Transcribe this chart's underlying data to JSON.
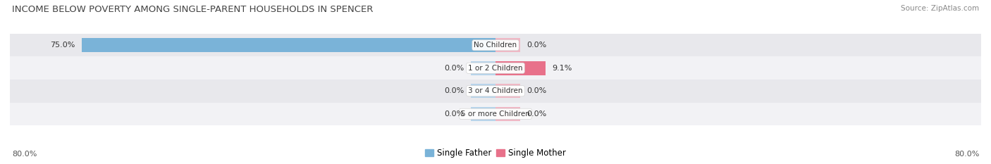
{
  "title": "INCOME BELOW POVERTY AMONG SINGLE-PARENT HOUSEHOLDS IN SPENCER",
  "source": "Source: ZipAtlas.com",
  "categories": [
    "No Children",
    "1 or 2 Children",
    "3 or 4 Children",
    "5 or more Children"
  ],
  "single_father": [
    75.0,
    0.0,
    0.0,
    0.0
  ],
  "single_mother": [
    0.0,
    9.1,
    0.0,
    0.0
  ],
  "father_color": "#7ab3d8",
  "mother_color": "#e8718a",
  "father_color_light": "#b8d4ea",
  "mother_color_light": "#f0b8c5",
  "bg_row_dark": "#e8e8ec",
  "bg_row_light": "#f2f2f5",
  "bg_white": "#ffffff",
  "max_val": 80.0,
  "x_left_label": "80.0%",
  "x_right_label": "80.0%",
  "title_fontsize": 9.5,
  "source_fontsize": 7.5,
  "axis_label_fontsize": 8,
  "bar_label_fontsize": 8,
  "category_fontsize": 7.5,
  "legend_fontsize": 8.5,
  "stub_size": 4.5
}
